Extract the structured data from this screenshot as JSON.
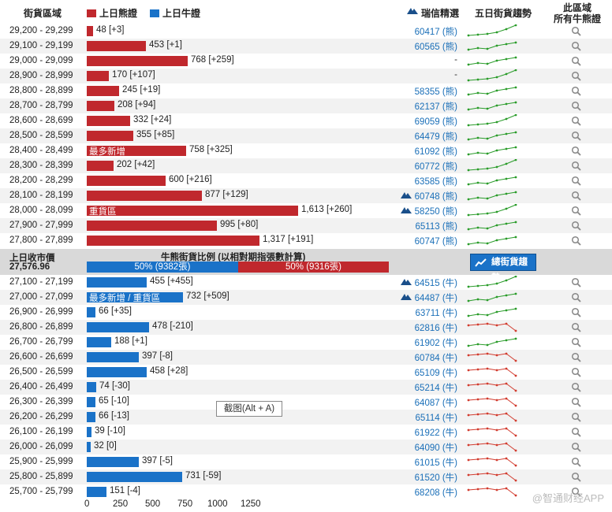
{
  "header": {
    "range_col": "街貨區域",
    "bear_legend": "上日熊證",
    "bull_legend": "上日牛證",
    "ubs_col": "瑞信精選",
    "trend_col": "五日街貨趨勢",
    "area_col_1": "此區域",
    "area_col_2": "所有牛熊證"
  },
  "colors": {
    "bear": "#c0282d",
    "bull": "#1a72c8",
    "up": "#2a9c2a",
    "down": "#d23b2e"
  },
  "bear_rows": [
    {
      "range": "29,200 - 29,299",
      "value": 48,
      "label": "48 [+3]",
      "ubs": "60417 (熊)",
      "icon": false,
      "trend": "up",
      "tag": ""
    },
    {
      "range": "29,100 - 29,199",
      "value": 453,
      "label": "453 [+1]",
      "ubs": "60565 (熊)",
      "icon": false,
      "trend": "up",
      "tag": ""
    },
    {
      "range": "29,000 - 29,099",
      "value": 768,
      "label": "768 [+259]",
      "ubs": "-",
      "icon": false,
      "trend": "up",
      "tag": ""
    },
    {
      "range": "28,900 - 28,999",
      "value": 170,
      "label": "170 [+107]",
      "ubs": "-",
      "icon": false,
      "trend": "up",
      "tag": ""
    },
    {
      "range": "28,800 - 28,899",
      "value": 245,
      "label": "245 [+19]",
      "ubs": "58355 (熊)",
      "icon": false,
      "trend": "up",
      "tag": ""
    },
    {
      "range": "28,700 - 28,799",
      "value": 208,
      "label": "208 [+94]",
      "ubs": "62137 (熊)",
      "icon": false,
      "trend": "up",
      "tag": ""
    },
    {
      "range": "28,600 - 28,699",
      "value": 332,
      "label": "332 [+24]",
      "ubs": "69059 (熊)",
      "icon": false,
      "trend": "up",
      "tag": ""
    },
    {
      "range": "28,500 - 28,599",
      "value": 355,
      "label": "355 [+85]",
      "ubs": "64479 (熊)",
      "icon": false,
      "trend": "up",
      "tag": ""
    },
    {
      "range": "28,400 - 28,499",
      "value": 758,
      "label": "758 [+325]",
      "ubs": "61092 (熊)",
      "icon": false,
      "trend": "up",
      "tag": "最多新增"
    },
    {
      "range": "28,300 - 28,399",
      "value": 202,
      "label": "202 [+42]",
      "ubs": "60772 (熊)",
      "icon": false,
      "trend": "up",
      "tag": ""
    },
    {
      "range": "28,200 - 28,299",
      "value": 600,
      "label": "600 [+216]",
      "ubs": "63585 (熊)",
      "icon": false,
      "trend": "up",
      "tag": ""
    },
    {
      "range": "28,100 - 28,199",
      "value": 877,
      "label": "877 [+129]",
      "ubs": "60748 (熊)",
      "icon": true,
      "trend": "up",
      "tag": ""
    },
    {
      "range": "28,000 - 28,099",
      "value": 1613,
      "label": "1,613 [+260]",
      "ubs": "58250 (熊)",
      "icon": true,
      "trend": "up",
      "tag": "重貨區"
    },
    {
      "range": "27,900 - 27,999",
      "value": 995,
      "label": "995 [+80]",
      "ubs": "65113 (熊)",
      "icon": false,
      "trend": "up",
      "tag": ""
    },
    {
      "range": "27,800 - 27,899",
      "value": 1317,
      "label": "1,317 [+191]",
      "ubs": "60747 (熊)",
      "icon": false,
      "trend": "up",
      "tag": ""
    }
  ],
  "middle": {
    "close_label": "上日收市價",
    "close_value": "27,576.96",
    "ratio_title": "牛熊街貨比例 (以相對期指張數計算)",
    "left_ratio": "50% (9382張)",
    "right_ratio": "50% (9316張)",
    "trend_button": "總街貨趨勢"
  },
  "bull_rows": [
    {
      "range": "27,100 - 27,199",
      "value": 455,
      "label": "455 [+455]",
      "ubs": "64515 (牛)",
      "icon": true,
      "trend": "up",
      "tag": ""
    },
    {
      "range": "27,000 - 27,099",
      "value": 732,
      "label": "732 [+509]",
      "ubs": "64487 (牛)",
      "icon": true,
      "trend": "up",
      "tag": "最多新增 / 重貨區"
    },
    {
      "range": "26,900 - 26,999",
      "value": 66,
      "label": "66 [+35]",
      "ubs": "63711 (牛)",
      "icon": false,
      "trend": "up",
      "tag": ""
    },
    {
      "range": "26,800 - 26,899",
      "value": 478,
      "label": "478 [-210]",
      "ubs": "62816 (牛)",
      "icon": false,
      "trend": "down",
      "tag": ""
    },
    {
      "range": "26,700 - 26,799",
      "value": 188,
      "label": "188 [+1]",
      "ubs": "61902 (牛)",
      "icon": false,
      "trend": "up",
      "tag": ""
    },
    {
      "range": "26,600 - 26,699",
      "value": 397,
      "label": "397 [-8]",
      "ubs": "60784 (牛)",
      "icon": false,
      "trend": "down",
      "tag": ""
    },
    {
      "range": "26,500 - 26,599",
      "value": 458,
      "label": "458 [+28]",
      "ubs": "65109 (牛)",
      "icon": false,
      "trend": "down",
      "tag": ""
    },
    {
      "range": "26,400 - 26,499",
      "value": 74,
      "label": "74 [-30]",
      "ubs": "65214 (牛)",
      "icon": false,
      "trend": "down",
      "tag": ""
    },
    {
      "range": "26,300 - 26,399",
      "value": 65,
      "label": "65 [-10]",
      "ubs": "64087 (牛)",
      "icon": false,
      "trend": "down",
      "tag": ""
    },
    {
      "range": "26,200 - 26,299",
      "value": 66,
      "label": "66 [-13]",
      "ubs": "65114 (牛)",
      "icon": false,
      "trend": "down",
      "tag": ""
    },
    {
      "range": "26,100 - 26,199",
      "value": 39,
      "label": "39 [-10]",
      "ubs": "61922 (牛)",
      "icon": false,
      "trend": "down",
      "tag": ""
    },
    {
      "range": "26,000 - 26,099",
      "value": 32,
      "label": "32 [0]",
      "ubs": "64090 (牛)",
      "icon": false,
      "trend": "down",
      "tag": ""
    },
    {
      "range": "25,900 - 25,999",
      "value": 397,
      "label": "397 [-5]",
      "ubs": "61015 (牛)",
      "icon": false,
      "trend": "down",
      "tag": ""
    },
    {
      "range": "25,800 - 25,899",
      "value": 731,
      "label": "731 [-59]",
      "ubs": "61520 (牛)",
      "icon": false,
      "trend": "down",
      "tag": ""
    },
    {
      "range": "25,700 - 25,799",
      "value": 151,
      "label": "151 [-4]",
      "ubs": "68208 (牛)",
      "icon": false,
      "trend": "down",
      "tag": ""
    }
  ],
  "x_ticks": [
    "0",
    "250",
    "500",
    "750",
    "1000",
    "1250"
  ],
  "tooltip": "截图(Alt + A)",
  "watermark": "@智通财经APP"
}
